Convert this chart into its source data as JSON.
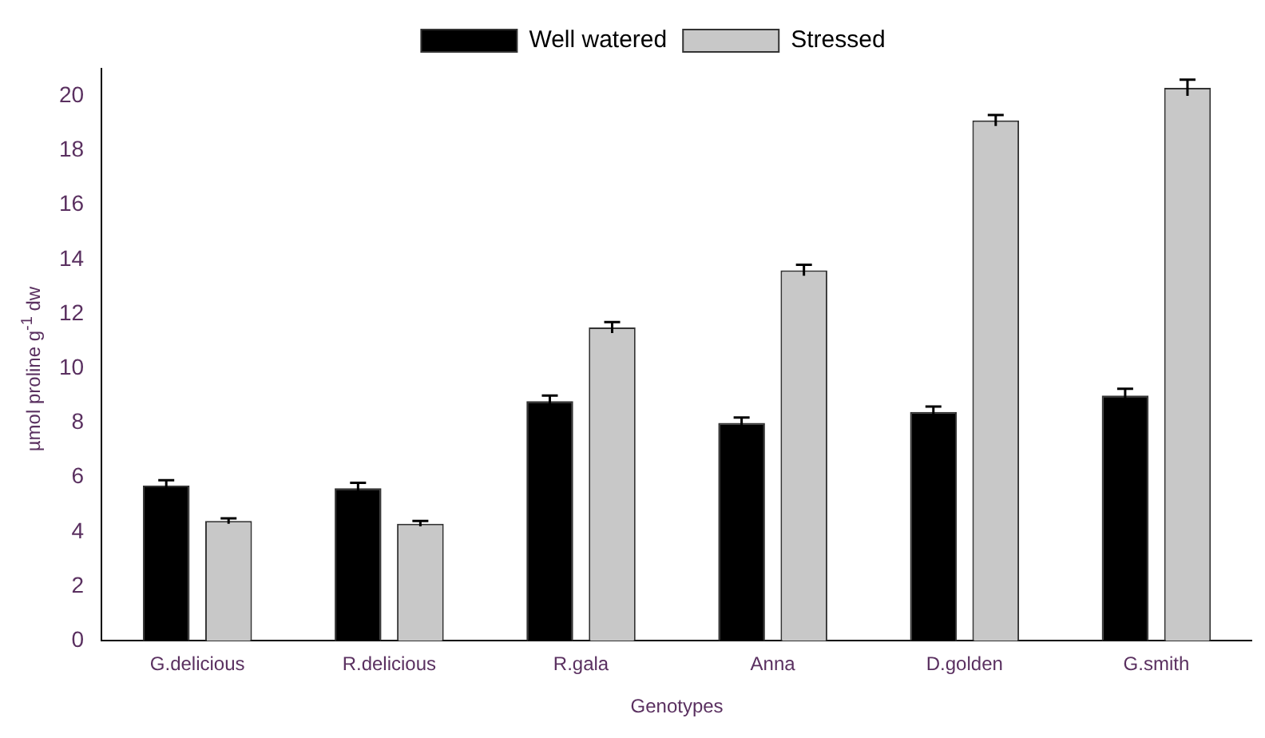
{
  "chart_data": {
    "type": "bar",
    "xlabel": "Genotypes",
    "ylabel": "µmol proline g$^{-1}$ dw",
    "categories": [
      "G.delicious",
      "R.delicious",
      "R.gala",
      "Anna",
      "D.golden",
      "G.smith"
    ],
    "series": [
      {
        "name": "Well watered",
        "color": "#000000",
        "values": [
          5.7,
          5.6,
          8.8,
          8.0,
          8.4,
          9.0
        ],
        "errors": [
          0.2,
          0.2,
          0.2,
          0.2,
          0.2,
          0.25
        ]
      },
      {
        "name": "Stressed",
        "color": "#c8c8c8",
        "values": [
          4.4,
          4.3,
          11.5,
          13.6,
          19.1,
          20.3
        ],
        "errors": [
          0.1,
          0.1,
          0.2,
          0.2,
          0.2,
          0.3
        ]
      }
    ],
    "ylim": [
      0,
      21
    ],
    "yticks": [
      0,
      2,
      4,
      6,
      8,
      10,
      12,
      14,
      16,
      18,
      20
    ],
    "grid": false,
    "legend": "top"
  }
}
